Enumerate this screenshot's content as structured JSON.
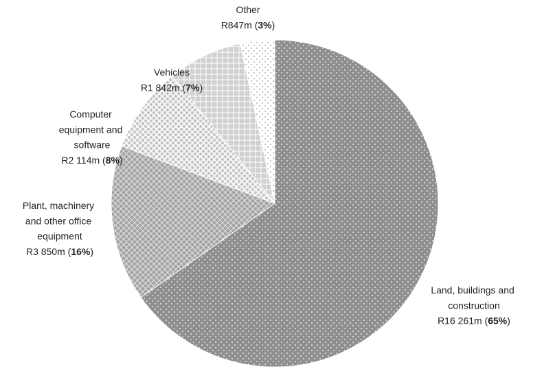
{
  "chart_data": {
    "type": "pie",
    "categories": [
      "Land, buildings and construction",
      "Plant, machinery and other office equipment",
      "Computer equipment and software",
      "Vehicles",
      "Other"
    ],
    "values": [
      16261,
      3850,
      2114,
      1842,
      847
    ],
    "value_labels": [
      "R16 261m",
      "R3 850m",
      "R2 114m",
      "R1 842m",
      "R847m"
    ],
    "percent_labels": [
      "65%",
      "16%",
      "8%",
      "7%",
      "3%"
    ],
    "colors": [
      "#8f8f8f",
      "#a3a3a3",
      "#c4c4c4",
      "#d0d0d0",
      "#ffffff"
    ]
  }
}
